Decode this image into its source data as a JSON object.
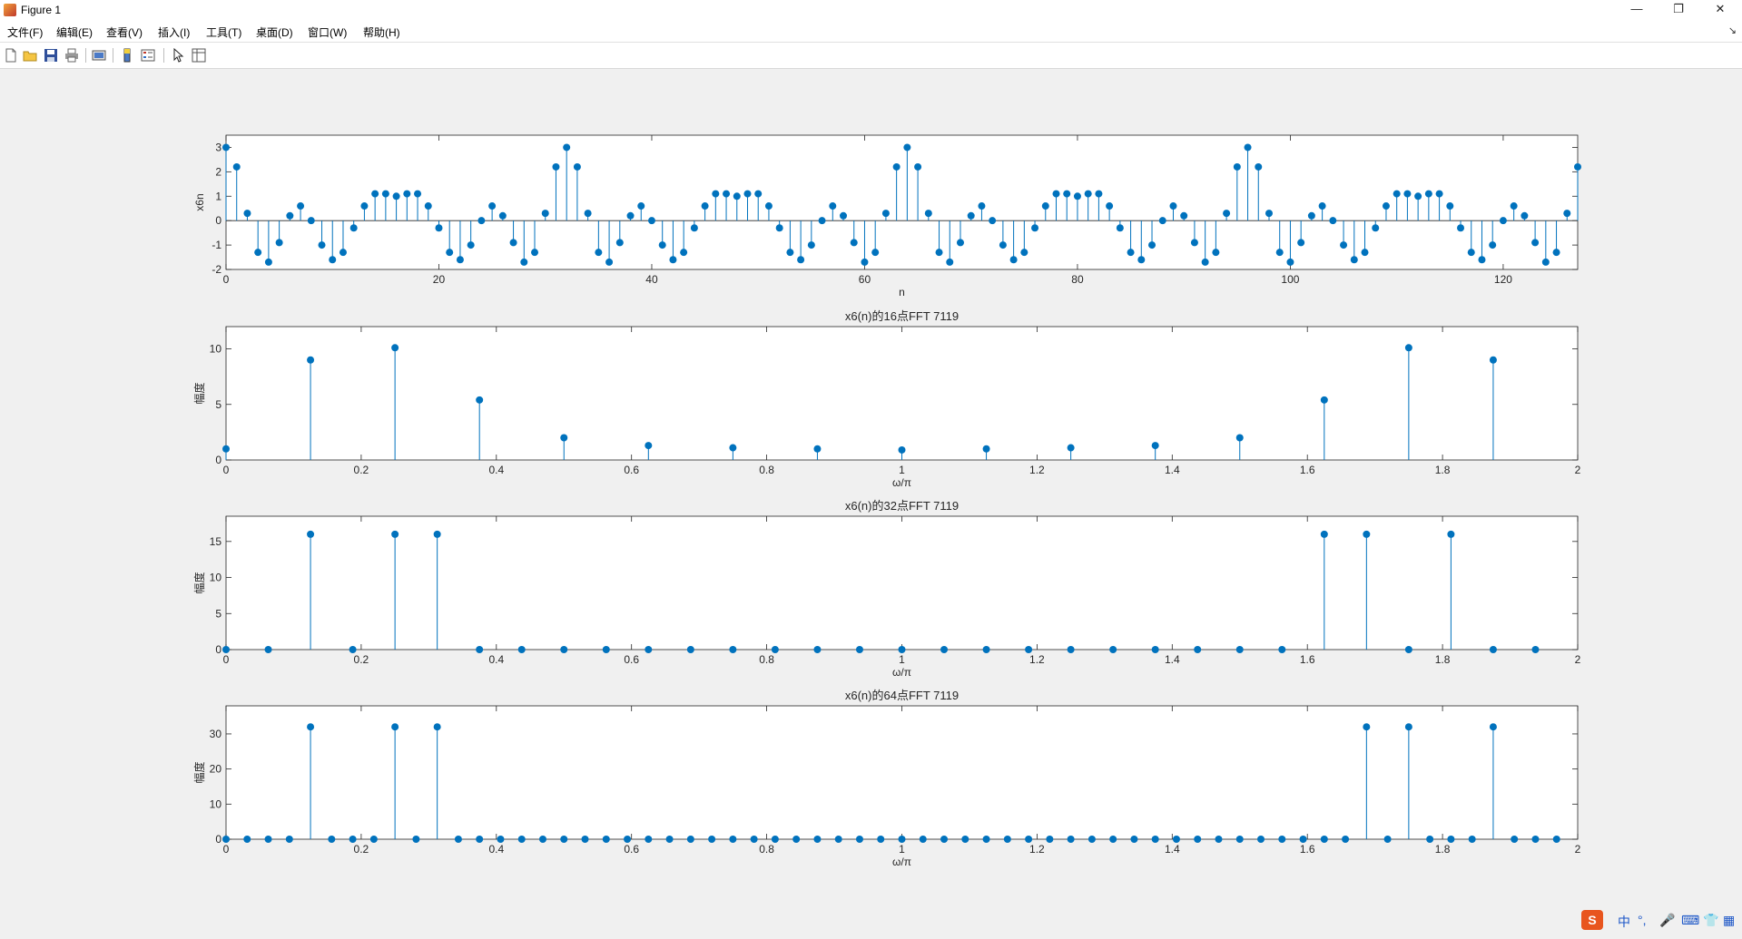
{
  "window": {
    "title": "Figure 1",
    "controls": {
      "minimize": "—",
      "maximize": "❐",
      "close": "✕"
    }
  },
  "menu": [
    "文件(F)",
    "编辑(E)",
    "查看(V)",
    "插入(I)",
    "工具(T)",
    "桌面(D)",
    "窗口(W)",
    "帮助(H)"
  ],
  "menu_arrow": "↘",
  "toolbar": {
    "icons": [
      "new-figure-icon",
      "open-file-icon",
      "save-icon",
      "print-icon",
      "print-preview-icon",
      "link-plot-icon",
      "insert-colorbar-icon",
      "insert-legend-icon",
      "edit-plot-icon",
      "property-inspector-icon"
    ]
  },
  "colors": {
    "stem": "#0072bd",
    "axes_bg": "#ffffff",
    "figure_bg": "#f0f0f0"
  },
  "ime": {
    "label": "中",
    "punct": "°,",
    "mic": "mic-icon",
    "keyboard": "keyboard-icon",
    "skin": "skin-icon",
    "apps": "apps-icon"
  },
  "chart_data": [
    {
      "type": "stem",
      "title": "",
      "xlabel": "n",
      "ylabel": "x6n",
      "xlim": [
        0,
        127
      ],
      "ylim": [
        -2,
        3.5
      ],
      "xticks": [
        0,
        20,
        40,
        60,
        80,
        100,
        120
      ],
      "yticks": [
        -2,
        -1,
        0,
        1,
        2,
        3
      ],
      "grid": false,
      "x_start": 0,
      "values": [
        3.0,
        2.2,
        0.3,
        -1.3,
        -1.7,
        -0.9,
        0.2,
        0.6,
        0.0,
        -1.0,
        -1.6,
        -1.3,
        -0.3,
        0.6,
        1.1,
        1.1,
        1.0,
        1.1,
        1.1,
        0.6,
        -0.3,
        -1.3,
        -1.6,
        -1.0,
        0.0,
        0.6,
        0.2,
        -0.9,
        -1.7,
        -1.3,
        0.3,
        2.2,
        3.0,
        2.2,
        0.3,
        -1.3,
        -1.7,
        -0.9,
        0.2,
        0.6,
        0.0,
        -1.0,
        -1.6,
        -1.3,
        -0.3,
        0.6,
        1.1,
        1.1,
        1.0,
        1.1,
        1.1,
        0.6,
        -0.3,
        -1.3,
        -1.6,
        -1.0,
        0.0,
        0.6,
        0.2,
        -0.9,
        -1.7,
        -1.3,
        0.3,
        2.2,
        3.0,
        2.2,
        0.3,
        -1.3,
        -1.7,
        -0.9,
        0.2,
        0.6,
        0.0,
        -1.0,
        -1.6,
        -1.3,
        -0.3,
        0.6,
        1.1,
        1.1,
        1.0,
        1.1,
        1.1,
        0.6,
        -0.3,
        -1.3,
        -1.6,
        -1.0,
        0.0,
        0.6,
        0.2,
        -0.9,
        -1.7,
        -1.3,
        0.3,
        2.2,
        3.0,
        2.2,
        0.3,
        -1.3,
        -1.7,
        -0.9,
        0.2,
        0.6,
        0.0,
        -1.0,
        -1.6,
        -1.3,
        -0.3,
        0.6,
        1.1,
        1.1,
        1.0,
        1.1,
        1.1,
        0.6,
        -0.3,
        -1.3,
        -1.6,
        -1.0,
        0.0,
        0.6,
        0.2,
        -0.9,
        -1.7,
        -1.3,
        0.3,
        2.2
      ]
    },
    {
      "type": "stem",
      "title": "x6(n)的16点FFT  7119",
      "xlabel": "ω/π",
      "ylabel": "幅度",
      "xlim": [
        0,
        2
      ],
      "ylim": [
        0,
        12
      ],
      "xticks": [
        0,
        0.2,
        0.4,
        0.6,
        0.8,
        1,
        1.2,
        1.4,
        1.6,
        1.8,
        2
      ],
      "yticks": [
        0,
        5,
        10
      ],
      "grid": false,
      "x_step": 0.125,
      "values": [
        1.0,
        9.0,
        10.1,
        5.4,
        2.0,
        1.3,
        1.1,
        1.0,
        0.9,
        1.0,
        1.1,
        1.3,
        2.0,
        5.4,
        10.1,
        9.0
      ]
    },
    {
      "type": "stem",
      "title": "x6(n)的32点FFT  7119",
      "xlabel": "ω/π",
      "ylabel": "幅度",
      "xlim": [
        0,
        2
      ],
      "ylim": [
        0,
        18.5
      ],
      "xticks": [
        0,
        0.2,
        0.4,
        0.6,
        0.8,
        1,
        1.2,
        1.4,
        1.6,
        1.8,
        2
      ],
      "yticks": [
        0,
        5,
        10,
        15
      ],
      "grid": false,
      "x_step": 0.0625,
      "values": [
        0,
        0,
        16,
        0,
        16,
        16,
        0,
        0,
        0,
        0,
        0,
        0,
        0,
        0,
        0,
        0,
        0,
        0,
        0,
        0,
        0,
        0,
        0,
        0,
        0,
        0,
        16,
        16,
        0,
        16,
        0,
        0
      ]
    },
    {
      "type": "stem",
      "title": "x6(n)的64点FFT  7119",
      "xlabel": "ω/π",
      "ylabel": "幅度",
      "xlim": [
        0,
        2
      ],
      "ylim": [
        0,
        38
      ],
      "xticks": [
        0,
        0.2,
        0.4,
        0.6,
        0.8,
        1,
        1.2,
        1.4,
        1.6,
        1.8,
        2
      ],
      "yticks": [
        0,
        10,
        20,
        30
      ],
      "grid": false,
      "x_step": 0.03125,
      "values": [
        0,
        0,
        0,
        0,
        32,
        0,
        0,
        0,
        32,
        0,
        32,
        0,
        0,
        0,
        0,
        0,
        0,
        0,
        0,
        0,
        0,
        0,
        0,
        0,
        0,
        0,
        0,
        0,
        0,
        0,
        0,
        0,
        0,
        0,
        0,
        0,
        0,
        0,
        0,
        0,
        0,
        0,
        0,
        0,
        0,
        0,
        0,
        0,
        0,
        0,
        0,
        0,
        0,
        0,
        32,
        0,
        32,
        0,
        0,
        0,
        32,
        0,
        0,
        0
      ]
    }
  ]
}
